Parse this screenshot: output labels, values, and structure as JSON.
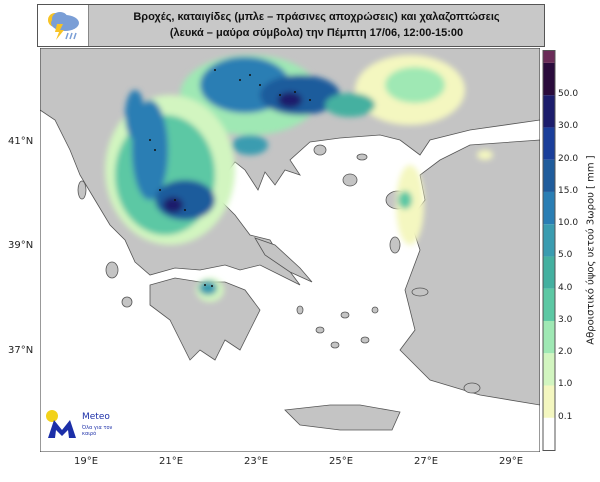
{
  "header": {
    "title_line1": "Βροχές, καταιγίδες (μπλε – πράσινες αποχρώσεις) και χαλαζοπτώσεις",
    "title_line2": "(λευκά – μαύρα σύμβολα) την Πέμπτη 17/06, 12:00-15:00",
    "icon": "storm-cloud-icon"
  },
  "map": {
    "lon_labels": [
      "19°E",
      "21°E",
      "23°E",
      "25°E",
      "27°E",
      "29°E"
    ],
    "lat_labels": [
      "41°N",
      "39°N",
      "37°N"
    ],
    "land_color": "#c4c4c4",
    "sea_color": "#ffffff"
  },
  "colorbar": {
    "label": "Αθροιστικό ύψος υετού 3ωρου [ mm ]",
    "ticks": [
      "50.0",
      "30.0",
      "20.0",
      "15.0",
      "10.0",
      "5.0",
      "4.0",
      "3.0",
      "2.0",
      "1.0",
      "0.1"
    ],
    "colors": [
      "#ffffff",
      "#f4f7c0",
      "#d2f5c0",
      "#9fe8b4",
      "#5cc8a4",
      "#44b0a0",
      "#3a9cb0",
      "#2a7eb4",
      "#1f5c9c",
      "#1a3e9a",
      "#1c1d6c",
      "#2a0b3c",
      "#6a2c58"
    ]
  },
  "logo": {
    "name": "Meteo",
    "tagline": "Όλα για τον καιρό"
  }
}
